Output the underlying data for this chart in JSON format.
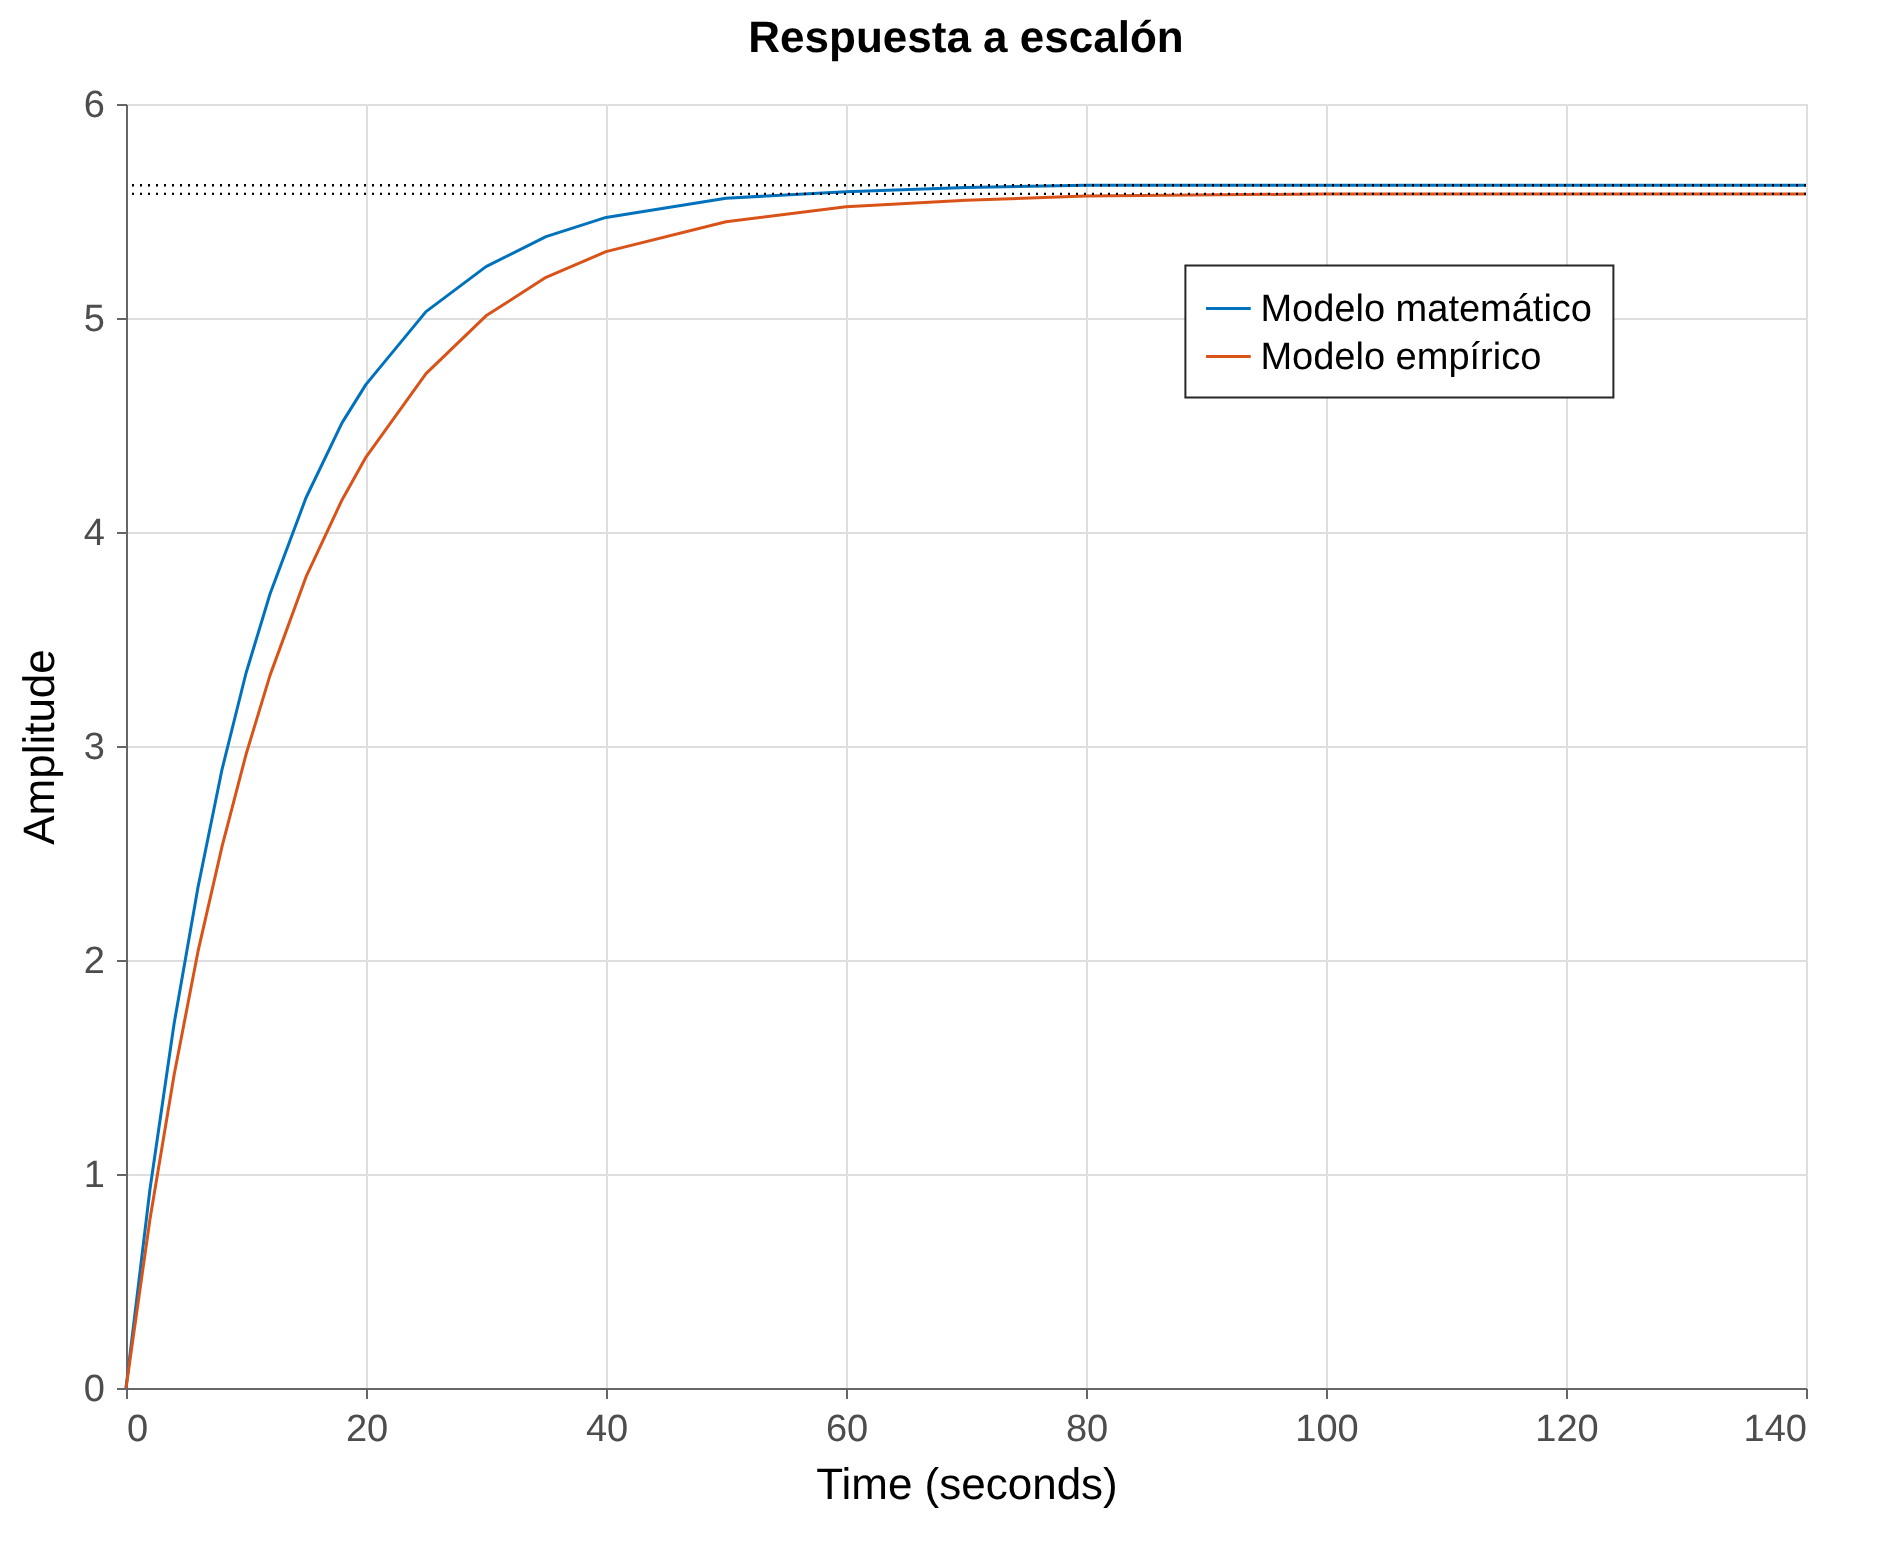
{
  "chart_data": {
    "type": "line",
    "title": "Respuesta a escalón",
    "xlabel": "Time (seconds)",
    "ylabel": "Amplitude",
    "xlim": [
      0,
      140
    ],
    "ylim": [
      0,
      6
    ],
    "xticks": [
      0,
      20,
      40,
      60,
      80,
      100,
      120,
      140
    ],
    "yticks": [
      0,
      1,
      2,
      3,
      4,
      5,
      6
    ],
    "grid": true,
    "legend": "top right",
    "marker": "none",
    "line_style": "solid",
    "x": [
      0,
      2,
      4,
      6,
      8,
      10,
      12,
      15,
      18,
      20,
      25,
      30,
      35,
      40,
      50,
      60,
      70,
      80,
      100,
      120,
      140
    ],
    "series": [
      {
        "name": "Modelo matemático",
        "color": "#0072bd",
        "values": [
          0,
          0.93,
          1.7,
          2.34,
          2.89,
          3.34,
          3.71,
          4.16,
          4.51,
          4.69,
          5.03,
          5.24,
          5.38,
          5.47,
          5.56,
          5.59,
          5.61,
          5.62,
          5.62,
          5.62,
          5.62
        ]
      },
      {
        "name": "Modelo empírico",
        "color": "#d95319",
        "values": [
          0,
          0.79,
          1.46,
          2.04,
          2.53,
          2.96,
          3.33,
          3.79,
          4.15,
          4.35,
          4.74,
          5.01,
          5.19,
          5.31,
          5.45,
          5.52,
          5.55,
          5.57,
          5.58,
          5.58,
          5.58
        ]
      }
    ],
    "ref_lines": [
      {
        "axis": "y",
        "value": 5.62,
        "label": null,
        "color": "#000000",
        "line_style": "dotted"
      },
      {
        "axis": "y",
        "value": 5.58,
        "label": null,
        "color": "#000000",
        "line_style": "dotted"
      }
    ]
  }
}
